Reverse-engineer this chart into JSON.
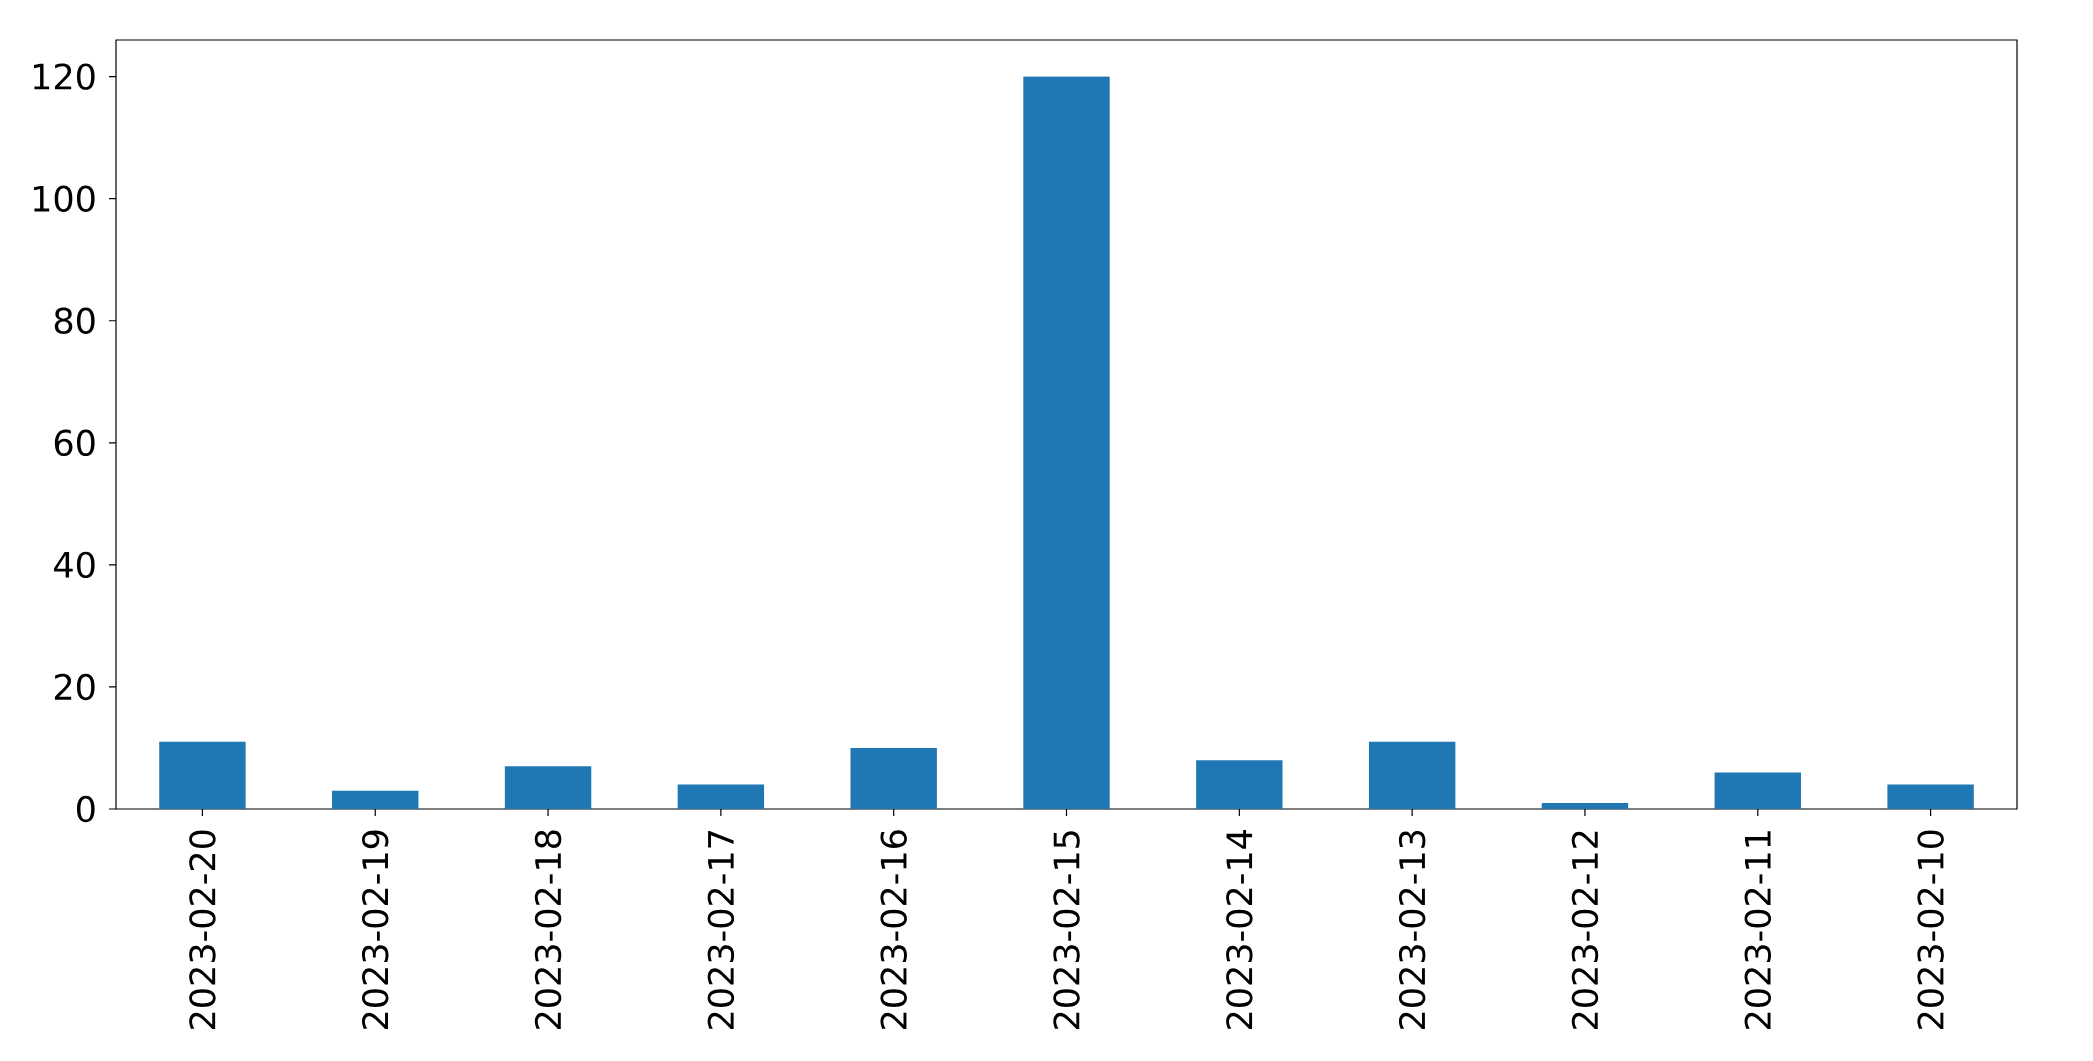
{
  "chart_data": {
    "type": "bar",
    "categories": [
      "2023-02-20",
      "2023-02-19",
      "2023-02-18",
      "2023-02-17",
      "2023-02-16",
      "2023-02-15",
      "2023-02-14",
      "2023-02-13",
      "2023-02-12",
      "2023-02-11",
      "2023-02-10"
    ],
    "values": [
      11,
      3,
      7,
      4,
      10,
      120,
      8,
      11,
      1,
      6,
      4
    ],
    "color": "#1f77b4",
    "ylim": [
      0,
      126
    ],
    "yticks": [
      0,
      20,
      40,
      60,
      80,
      100,
      120
    ]
  }
}
